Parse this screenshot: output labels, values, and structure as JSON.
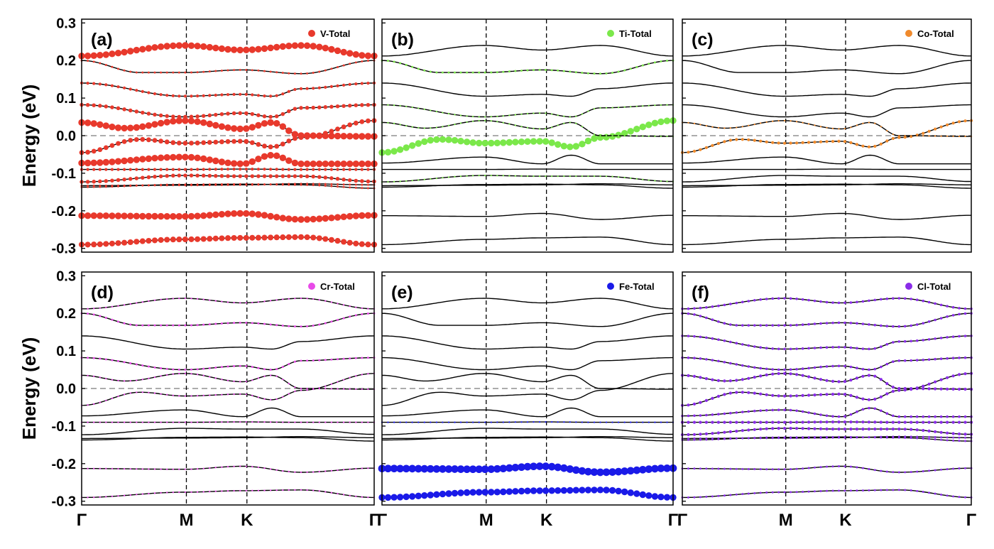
{
  "chart_data": [
    {
      "type": "line",
      "panel_label": "(a)",
      "legend": "V-Total",
      "legend_color": "#e8392c",
      "ylabel": "Energy (eV)",
      "ylim": [
        -0.31,
        0.31
      ],
      "yticks": [
        "0.3",
        "0.2",
        "0.1",
        "0.0",
        "-0.1",
        "-0.2",
        "-0.3"
      ],
      "kpath_labels": [
        "Γ",
        "M",
        "K",
        "Γ"
      ],
      "fermi_level": 0.0,
      "band_weights": [
        5,
        6,
        1,
        1,
        3,
        2,
        6,
        4,
        6,
        3,
        2,
        1,
        6
      ]
    },
    {
      "type": "line",
      "panel_label": "(b)",
      "legend": "Ti-Total",
      "legend_color": "#7be84a",
      "ylim": [
        -0.31,
        0.31
      ],
      "kpath_labels": [
        "Γ",
        "M",
        "K",
        "Γ"
      ],
      "fermi_level": 0.0,
      "band_weights": [
        0,
        0,
        0,
        0,
        0.5,
        0,
        0,
        6,
        0.5,
        0.5,
        0,
        1,
        0
      ]
    },
    {
      "type": "line",
      "panel_label": "(c)",
      "legend": "Co-Total",
      "legend_color": "#f08a2c",
      "ylim": [
        -0.31,
        0.31
      ],
      "kpath_labels": [
        "Γ",
        "M",
        "K",
        "Γ"
      ],
      "fermi_level": 0.0,
      "band_weights": [
        0,
        0,
        0,
        0,
        0,
        0,
        0,
        2,
        0.5,
        0,
        0,
        0,
        0
      ]
    },
    {
      "type": "line",
      "panel_label": "(d)",
      "legend": "Cr-Total",
      "legend_color": "#e84ae8",
      "ylim": [
        -0.31,
        0.31
      ],
      "yticks": [
        "0.3",
        "0.2",
        "0.1",
        "0.0",
        "-0.1",
        "-0.2",
        "-0.3"
      ],
      "ylabel": "Energy (eV)",
      "kpath_labels": [
        "Γ",
        "M",
        "K",
        "Γ"
      ],
      "fermi_level": 0.0,
      "band_weights": [
        0.5,
        0.5,
        0,
        0,
        0,
        0.5,
        0,
        0.5,
        0.5,
        1,
        0,
        1,
        0.5
      ]
    },
    {
      "type": "line",
      "panel_label": "(e)",
      "legend": "Fe-Total",
      "legend_color": "#1a1ae8",
      "ylim": [
        -0.31,
        0.31
      ],
      "kpath_labels": [
        "Γ",
        "M",
        "K",
        "Γ"
      ],
      "fermi_level": 0.0,
      "band_weights": [
        6,
        7,
        0,
        0,
        0,
        0.5,
        0,
        0,
        0,
        0,
        0,
        0,
        0
      ]
    },
    {
      "type": "line",
      "panel_label": "(f)",
      "legend": "Cl-Total",
      "legend_color": "#8a2ce8",
      "ylim": [
        -0.31,
        0.31
      ],
      "kpath_labels": [
        "Γ",
        "M",
        "K",
        "Γ"
      ],
      "fermi_level": 0.0,
      "band_weights": [
        1,
        1,
        1,
        1,
        2,
        2,
        1.5,
        2,
        2,
        1.5,
        1.5,
        1.5,
        1.5
      ]
    }
  ],
  "bands": [
    [
      [
        0,
        -0.29
      ],
      [
        0.35,
        -0.276
      ],
      [
        0.55,
        -0.272
      ],
      [
        0.75,
        -0.27
      ],
      [
        1,
        -0.29
      ]
    ],
    [
      [
        0,
        -0.213
      ],
      [
        0.35,
        -0.215
      ],
      [
        0.55,
        -0.207
      ],
      [
        0.75,
        -0.223
      ],
      [
        1,
        -0.212
      ]
    ],
    [
      [
        0,
        -0.137
      ],
      [
        0.35,
        -0.13
      ],
      [
        0.55,
        -0.129
      ],
      [
        0.75,
        -0.131
      ],
      [
        1,
        -0.14
      ]
    ],
    [
      [
        0,
        -0.133
      ],
      [
        0.35,
        -0.132
      ],
      [
        0.55,
        -0.131
      ],
      [
        0.75,
        -0.128
      ],
      [
        1,
        -0.131
      ]
    ],
    [
      [
        0,
        -0.123
      ],
      [
        0.35,
        -0.106
      ],
      [
        0.55,
        -0.108
      ],
      [
        0.75,
        -0.108
      ],
      [
        1,
        -0.122
      ]
    ],
    [
      [
        0,
        -0.09
      ],
      [
        0.35,
        -0.09
      ],
      [
        0.55,
        -0.089
      ],
      [
        0.75,
        -0.09
      ],
      [
        1,
        -0.09
      ]
    ],
    [
      [
        0,
        -0.073
      ],
      [
        0.35,
        -0.057
      ],
      [
        0.55,
        -0.075
      ],
      [
        0.65,
        -0.052
      ],
      [
        0.75,
        -0.075
      ],
      [
        1,
        -0.075
      ]
    ],
    [
      [
        0,
        -0.045
      ],
      [
        0.2,
        -0.01
      ],
      [
        0.35,
        -0.02
      ],
      [
        0.55,
        -0.015
      ],
      [
        0.65,
        -0.03
      ],
      [
        0.75,
        -0.005
      ],
      [
        1,
        0.04
      ]
    ],
    [
      [
        0,
        0.035
      ],
      [
        0.15,
        0.02
      ],
      [
        0.35,
        0.04
      ],
      [
        0.55,
        0.018
      ],
      [
        0.65,
        0.035
      ],
      [
        0.75,
        0.0
      ],
      [
        1,
        -0.002
      ]
    ],
    [
      [
        0,
        0.082
      ],
      [
        0.35,
        0.05
      ],
      [
        0.55,
        0.06
      ],
      [
        0.65,
        0.05
      ],
      [
        0.75,
        0.074
      ],
      [
        1,
        0.082
      ]
    ],
    [
      [
        0,
        0.14
      ],
      [
        0.35,
        0.105
      ],
      [
        0.55,
        0.11
      ],
      [
        0.65,
        0.105
      ],
      [
        0.75,
        0.125
      ],
      [
        1,
        0.14
      ]
    ],
    [
      [
        0,
        0.2
      ],
      [
        0.2,
        0.168
      ],
      [
        0.35,
        0.168
      ],
      [
        0.55,
        0.175
      ],
      [
        0.75,
        0.165
      ],
      [
        1,
        0.2
      ]
    ],
    [
      [
        0,
        0.212
      ],
      [
        0.35,
        0.24
      ],
      [
        0.55,
        0.228
      ],
      [
        0.75,
        0.24
      ],
      [
        1,
        0.212
      ]
    ]
  ]
}
